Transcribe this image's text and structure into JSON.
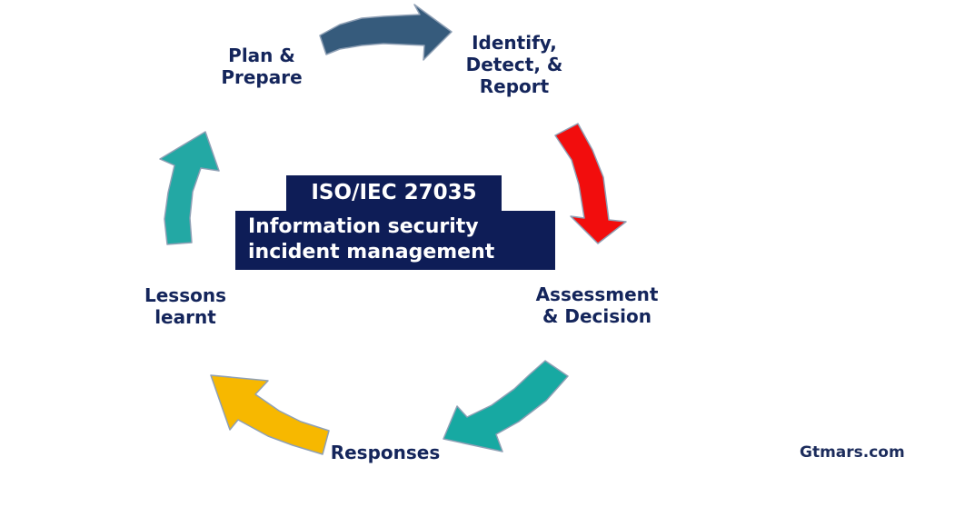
{
  "diagram": {
    "title": "ISO/IEC 27035",
    "subtitle_lines": [
      "Information security",
      "incident management"
    ],
    "stages": [
      {
        "label": "Plan &\nPrepare",
        "arrow_color": "#365b7c"
      },
      {
        "label": "Identify,\nDetect, &\nReport",
        "arrow_color": "#f20d0d"
      },
      {
        "label": "Assessment\n& Decision",
        "arrow_color": "#17a9a2"
      },
      {
        "label": "Responses",
        "arrow_color": "#f7b800"
      },
      {
        "label": "Lessons\nlearnt",
        "arrow_color": "#23a8a4"
      }
    ],
    "watermark": "Gtmars.com",
    "colors": {
      "label_text": "#14255b",
      "box_background": "#0e1d57",
      "box_text": "#ffffff",
      "arrow_outline": "#8fa0b5"
    }
  }
}
